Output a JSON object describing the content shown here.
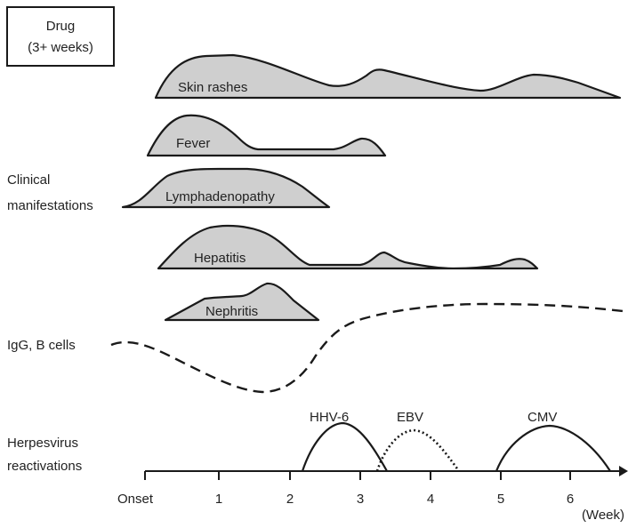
{
  "drug_box": {
    "line1": "Drug",
    "line2": "(3+ weeks)"
  },
  "manifestations": {
    "skin_rashes": "Skin rashes",
    "fever": "Fever",
    "lymphadenopathy": "Lymphadenopathy",
    "hepatitis": "Hepatitis",
    "nephritis": "Nephritis"
  },
  "row_labels": {
    "clinical_line1": "Clinical",
    "clinical_line2": "manifestations",
    "igg": "IgG, B cells",
    "herpes_line1": "Herpesvirus",
    "herpes_line2": "reactivations"
  },
  "viruses": {
    "hhv6": "HHV-6",
    "ebv": "EBV",
    "cmv": "CMV"
  },
  "axis": {
    "ticks": [
      "Onset",
      "1",
      "2",
      "3",
      "4",
      "5",
      "6"
    ],
    "unit": "(Week)"
  }
}
